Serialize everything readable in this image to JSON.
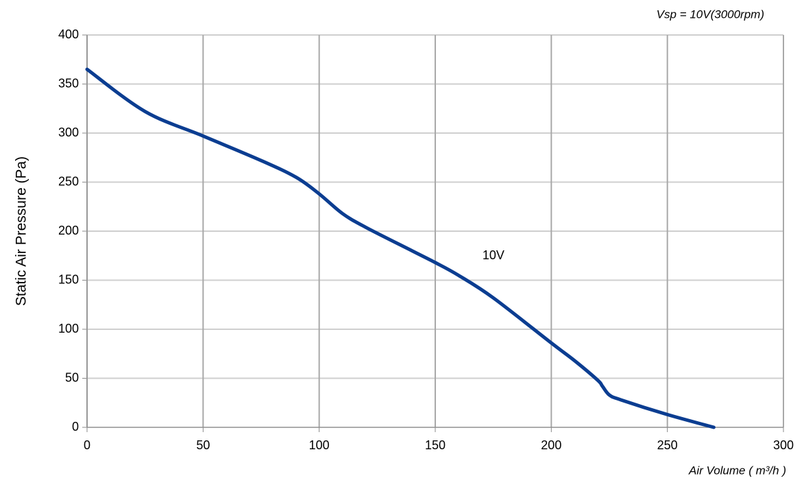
{
  "chart_data": {
    "type": "line",
    "title": "Vsp = 10V(3000rpm)",
    "x_label": "Air Volume ( m³/h )",
    "y_label": "Static Air Pressure  (Pa)",
    "x": [
      0,
      25,
      50,
      75,
      90,
      100,
      110,
      120,
      140,
      150,
      160,
      175,
      200,
      210,
      220,
      222,
      225,
      230,
      250,
      270
    ],
    "series": [
      {
        "name": "10V",
        "color": "#0b3d91",
        "values": [
          365,
          322,
          297,
          272,
          255,
          238,
          218,
          204,
          180,
          168,
          155,
          132,
          86,
          68,
          48,
          42,
          33,
          28,
          13,
          0
        ]
      }
    ],
    "xlim": [
      0,
      300
    ],
    "xticks": [
      0,
      50,
      100,
      150,
      200,
      250,
      300
    ],
    "ylim": [
      0,
      400
    ],
    "yticks": [
      0,
      50,
      100,
      150,
      200,
      250,
      300,
      350,
      400
    ],
    "grid": true
  }
}
